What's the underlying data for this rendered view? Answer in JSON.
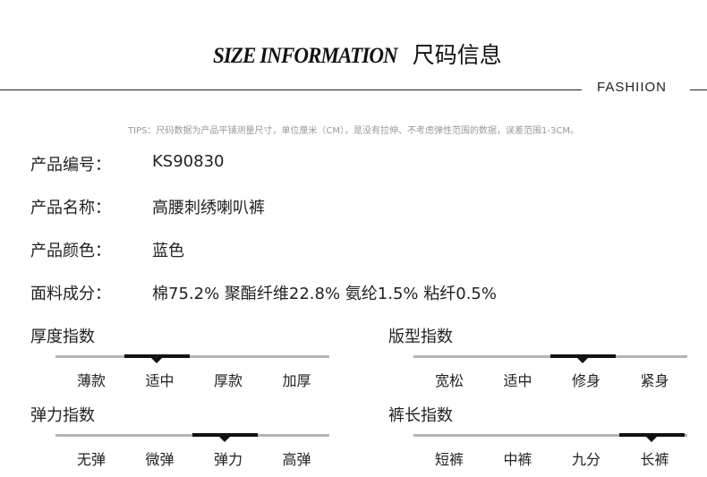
{
  "header": {
    "title_en": "SIZE INFORMATION",
    "title_cn": "尺码信息",
    "brand": "FASHIION",
    "tips": "TIPS：尺码数据为产品平铺测量尺寸，单位厘米（CM），是没有拉伸、不考虑弹性范围的数据，误差范围1-3CM。"
  },
  "info": [
    {
      "label": "产品编号：",
      "value": "KS90830"
    },
    {
      "label": "产品名称：",
      "value": "高腰刺绣喇叭裤"
    },
    {
      "label": "产品颜色：",
      "value": "蓝色"
    },
    {
      "label": "面料成分：",
      "value": "棉75.2% 聚酯纤维22.8% 氨纶1.5% 粘纤0.5%"
    }
  ],
  "scales": [
    {
      "title": "厚度指数",
      "options": [
        "薄款",
        "适中",
        "厚款",
        "加厚"
      ],
      "selected_index": 1
    },
    {
      "title": "版型指数",
      "options": [
        "宽松",
        "适中",
        "修身",
        "紧身"
      ],
      "selected_index": 2
    },
    {
      "title": "弹力指数",
      "options": [
        "无弹",
        "微弹",
        "弹力",
        "高弹"
      ],
      "selected_index": 2
    },
    {
      "title": "裤长指数",
      "options": [
        "短裤",
        "中裤",
        "九分",
        "长裤"
      ],
      "selected_index": 3
    }
  ]
}
